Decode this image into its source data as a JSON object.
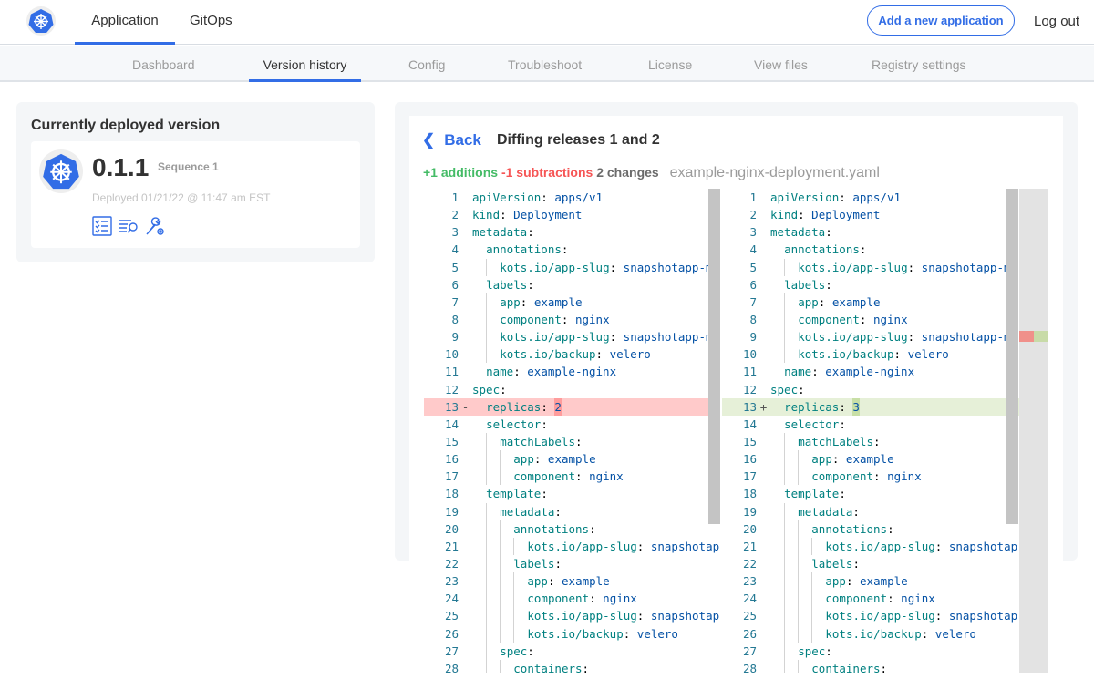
{
  "topnav": {
    "tabs": [
      {
        "label": "Application",
        "active": true
      },
      {
        "label": "GitOps",
        "active": false
      }
    ],
    "add_button": "Add a new application",
    "logout": "Log out"
  },
  "subnav": {
    "tabs": [
      {
        "label": "Dashboard"
      },
      {
        "label": "Version history",
        "active": true
      },
      {
        "label": "Config"
      },
      {
        "label": "Troubleshoot"
      },
      {
        "label": "License"
      },
      {
        "label": "View files"
      },
      {
        "label": "Registry settings"
      }
    ]
  },
  "deployed": {
    "title": "Currently deployed version",
    "version": "0.1.1",
    "sequence": "Sequence 1",
    "deployed_at": "Deployed 01/21/22 @ 11:47 am EST",
    "icons": [
      "checklist-icon",
      "logs-search-icon",
      "wrench-gear-icon"
    ]
  },
  "diff": {
    "back": "Back",
    "title": "Diffing releases 1 and 2",
    "additions": "+1 additions",
    "subtractions": "-1 subtractions",
    "changes": "2 changes",
    "filename": "example-nginx-deployment.yaml",
    "colors": {
      "accent": "#326de6",
      "added": "#44bb66",
      "removed": "#f65555"
    },
    "left": [
      {
        "n": "1",
        "i": 0,
        "k": "apiVersion",
        "v": "apps/v1"
      },
      {
        "n": "2",
        "i": 0,
        "k": "kind",
        "v": "Deployment"
      },
      {
        "n": "3",
        "i": 0,
        "k": "metadata",
        "v": ""
      },
      {
        "n": "4",
        "i": 1,
        "k": "annotations",
        "v": ""
      },
      {
        "n": "5",
        "i": 2,
        "k": "kots.io/app-slug",
        "v": "snapshotapp-mu"
      },
      {
        "n": "6",
        "i": 1,
        "k": "labels",
        "v": ""
      },
      {
        "n": "7",
        "i": 2,
        "k": "app",
        "v": "example"
      },
      {
        "n": "8",
        "i": 2,
        "k": "component",
        "v": "nginx"
      },
      {
        "n": "9",
        "i": 2,
        "k": "kots.io/app-slug",
        "v": "snapshotapp-mu"
      },
      {
        "n": "10",
        "i": 2,
        "k": "kots.io/backup",
        "v": "velero"
      },
      {
        "n": "11",
        "i": 1,
        "k": "name",
        "v": "example-nginx"
      },
      {
        "n": "12",
        "i": 0,
        "k": "spec",
        "v": ""
      },
      {
        "n": "13",
        "i": 1,
        "k": "replicas",
        "v": "2",
        "mark": "-",
        "type": "del"
      },
      {
        "n": "14",
        "i": 1,
        "k": "selector",
        "v": ""
      },
      {
        "n": "15",
        "i": 2,
        "k": "matchLabels",
        "v": ""
      },
      {
        "n": "16",
        "i": 3,
        "k": "app",
        "v": "example"
      },
      {
        "n": "17",
        "i": 3,
        "k": "component",
        "v": "nginx"
      },
      {
        "n": "18",
        "i": 1,
        "k": "template",
        "v": ""
      },
      {
        "n": "19",
        "i": 2,
        "k": "metadata",
        "v": ""
      },
      {
        "n": "20",
        "i": 3,
        "k": "annotations",
        "v": ""
      },
      {
        "n": "21",
        "i": 4,
        "k": "kots.io/app-slug",
        "v": "snapshotap"
      },
      {
        "n": "22",
        "i": 3,
        "k": "labels",
        "v": ""
      },
      {
        "n": "23",
        "i": 4,
        "k": "app",
        "v": "example"
      },
      {
        "n": "24",
        "i": 4,
        "k": "component",
        "v": "nginx"
      },
      {
        "n": "25",
        "i": 4,
        "k": "kots.io/app-slug",
        "v": "snapshotap"
      },
      {
        "n": "26",
        "i": 4,
        "k": "kots.io/backup",
        "v": "velero"
      },
      {
        "n": "27",
        "i": 2,
        "k": "spec",
        "v": ""
      },
      {
        "n": "28",
        "i": 3,
        "k": "containers",
        "v": ""
      }
    ],
    "right": [
      {
        "n": "1",
        "i": 0,
        "k": "apiVersion",
        "v": "apps/v1"
      },
      {
        "n": "2",
        "i": 0,
        "k": "kind",
        "v": "Deployment"
      },
      {
        "n": "3",
        "i": 0,
        "k": "metadata",
        "v": ""
      },
      {
        "n": "4",
        "i": 1,
        "k": "annotations",
        "v": ""
      },
      {
        "n": "5",
        "i": 2,
        "k": "kots.io/app-slug",
        "v": "snapshotapp-mu"
      },
      {
        "n": "6",
        "i": 1,
        "k": "labels",
        "v": ""
      },
      {
        "n": "7",
        "i": 2,
        "k": "app",
        "v": "example"
      },
      {
        "n": "8",
        "i": 2,
        "k": "component",
        "v": "nginx"
      },
      {
        "n": "9",
        "i": 2,
        "k": "kots.io/app-slug",
        "v": "snapshotapp-mu"
      },
      {
        "n": "10",
        "i": 2,
        "k": "kots.io/backup",
        "v": "velero"
      },
      {
        "n": "11",
        "i": 1,
        "k": "name",
        "v": "example-nginx"
      },
      {
        "n": "12",
        "i": 0,
        "k": "spec",
        "v": ""
      },
      {
        "n": "13",
        "i": 1,
        "k": "replicas",
        "v": "3",
        "mark": "+",
        "type": "ins"
      },
      {
        "n": "14",
        "i": 1,
        "k": "selector",
        "v": ""
      },
      {
        "n": "15",
        "i": 2,
        "k": "matchLabels",
        "v": ""
      },
      {
        "n": "16",
        "i": 3,
        "k": "app",
        "v": "example"
      },
      {
        "n": "17",
        "i": 3,
        "k": "component",
        "v": "nginx"
      },
      {
        "n": "18",
        "i": 1,
        "k": "template",
        "v": ""
      },
      {
        "n": "19",
        "i": 2,
        "k": "metadata",
        "v": ""
      },
      {
        "n": "20",
        "i": 3,
        "k": "annotations",
        "v": ""
      },
      {
        "n": "21",
        "i": 4,
        "k": "kots.io/app-slug",
        "v": "snapshotap"
      },
      {
        "n": "22",
        "i": 3,
        "k": "labels",
        "v": ""
      },
      {
        "n": "23",
        "i": 4,
        "k": "app",
        "v": "example"
      },
      {
        "n": "24",
        "i": 4,
        "k": "component",
        "v": "nginx"
      },
      {
        "n": "25",
        "i": 4,
        "k": "kots.io/app-slug",
        "v": "snapshotap"
      },
      {
        "n": "26",
        "i": 4,
        "k": "kots.io/backup",
        "v": "velero"
      },
      {
        "n": "27",
        "i": 2,
        "k": "spec",
        "v": ""
      },
      {
        "n": "28",
        "i": 3,
        "k": "containers",
        "v": ""
      }
    ]
  }
}
